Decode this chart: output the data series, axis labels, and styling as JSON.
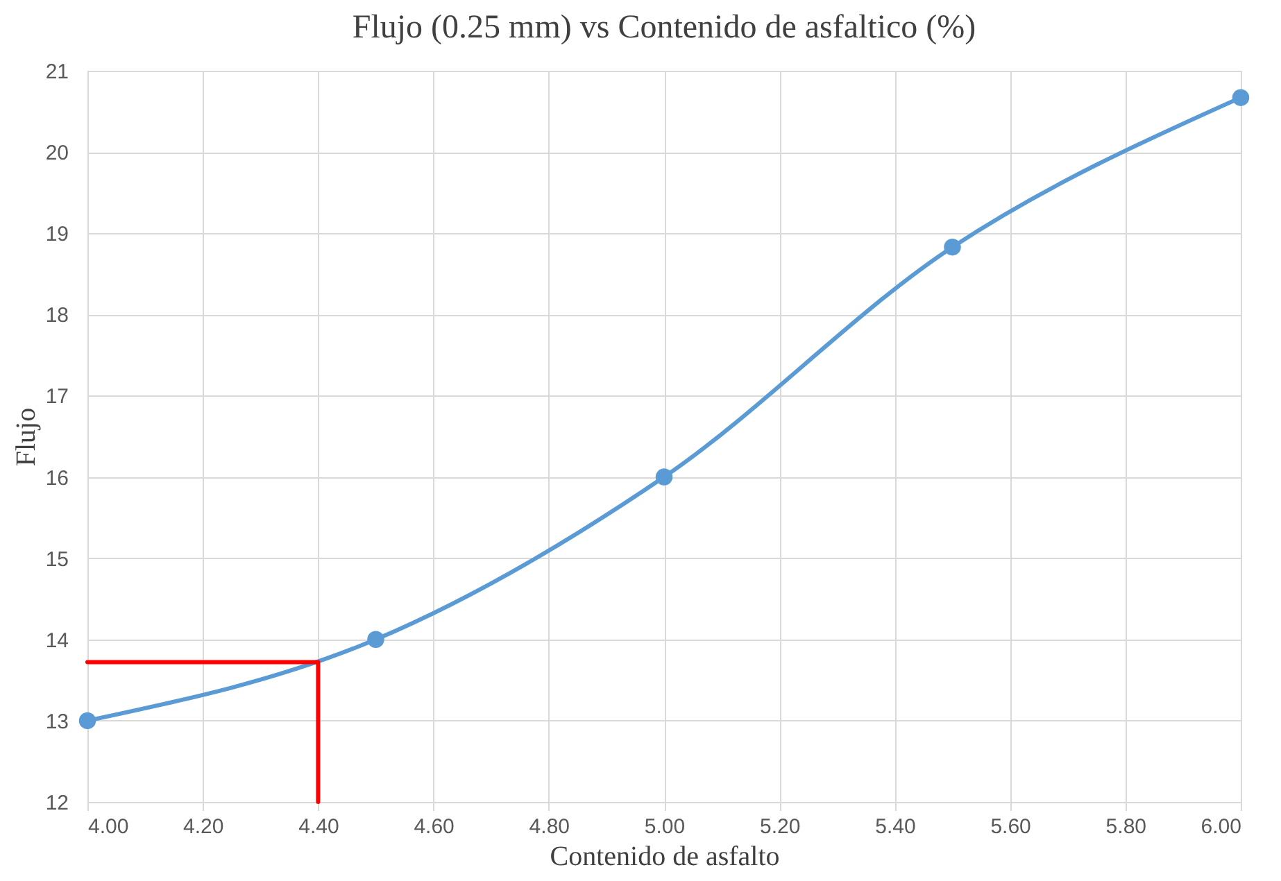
{
  "chart_data": {
    "type": "line",
    "title": "Flujo (0.25 mm) vs Contenido de asfaltico (%)",
    "xlabel": "Contenido de asfalto",
    "ylabel": "Flujo",
    "xlim": [
      4.0,
      6.0
    ],
    "ylim": [
      12,
      21
    ],
    "xticks": [
      {
        "value": 4.0,
        "label": "4.00"
      },
      {
        "value": 4.2,
        "label": "4.20"
      },
      {
        "value": 4.4,
        "label": "4.40"
      },
      {
        "value": 4.6,
        "label": "4.60"
      },
      {
        "value": 4.8,
        "label": "4.80"
      },
      {
        "value": 5.0,
        "label": "5.00"
      },
      {
        "value": 5.2,
        "label": "5.20"
      },
      {
        "value": 5.4,
        "label": "5.40"
      },
      {
        "value": 5.6,
        "label": "5.60"
      },
      {
        "value": 5.8,
        "label": "5.80"
      },
      {
        "value": 6.0,
        "label": "6.00"
      }
    ],
    "yticks": [
      12,
      13,
      14,
      15,
      16,
      17,
      18,
      19,
      20,
      21
    ],
    "grid": true,
    "marker": "circle",
    "line_style": "solid",
    "series": [
      {
        "color": "#5b9bd5",
        "x": [
          4.0,
          4.5,
          5.0,
          5.5,
          6.0
        ],
        "values": [
          13.0,
          14.0,
          16.0,
          18.83,
          20.67
        ]
      },
      {
        "color": "#ff0000",
        "marker": "none",
        "x": [
          4.0,
          4.4,
          4.4
        ],
        "values": [
          13.72,
          13.72,
          12.0
        ]
      }
    ]
  }
}
